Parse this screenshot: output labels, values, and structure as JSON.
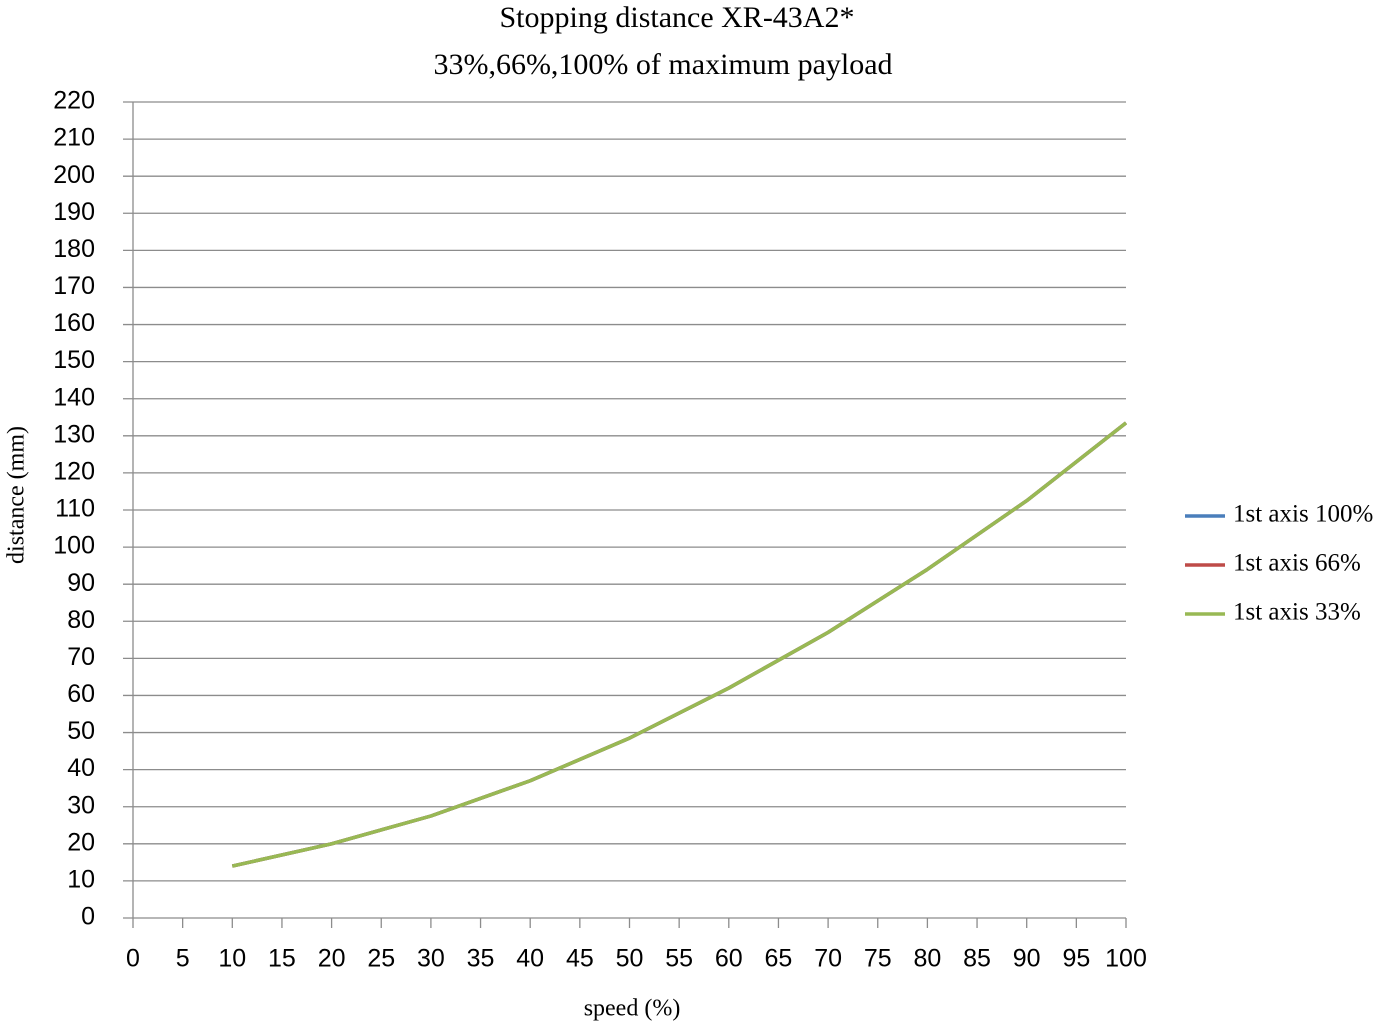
{
  "chart_data": {
    "type": "line",
    "title": "Stopping distance  XR-43A2*",
    "subtitle": "33%,66%,100% of maximum payload",
    "x_label": "speed  (%)",
    "y_label": "distance (mm)",
    "x": [
      10,
      20,
      30,
      40,
      50,
      60,
      70,
      80,
      90,
      100
    ],
    "series": [
      {
        "name": "1st axis 100%",
        "color": "#4a7ebb",
        "values": [
          14,
          20,
          27.5,
          37,
          48.5,
          62,
          77,
          94,
          112.5,
          133.5
        ]
      },
      {
        "name": "1st axis 66%",
        "color": "#be4b48",
        "values": [
          14,
          20,
          27.5,
          37,
          48.5,
          62,
          77,
          94,
          112.5,
          133.5
        ]
      },
      {
        "name": "1st axis 33%",
        "color": "#98b954",
        "values": [
          14,
          20,
          27.5,
          37,
          48.5,
          62,
          77,
          94,
          112.5,
          133.5
        ]
      }
    ],
    "xlim": [
      0,
      100
    ],
    "xticks": [
      0,
      5,
      10,
      15,
      20,
      25,
      30,
      35,
      40,
      45,
      50,
      55,
      60,
      65,
      70,
      75,
      80,
      85,
      90,
      95,
      100
    ],
    "ylim": [
      0,
      220
    ],
    "yticks": [
      0,
      10,
      20,
      30,
      40,
      50,
      60,
      70,
      80,
      90,
      100,
      110,
      120,
      130,
      140,
      150,
      160,
      170,
      180,
      190,
      200,
      210,
      220
    ],
    "grid": true,
    "legend": "right"
  }
}
